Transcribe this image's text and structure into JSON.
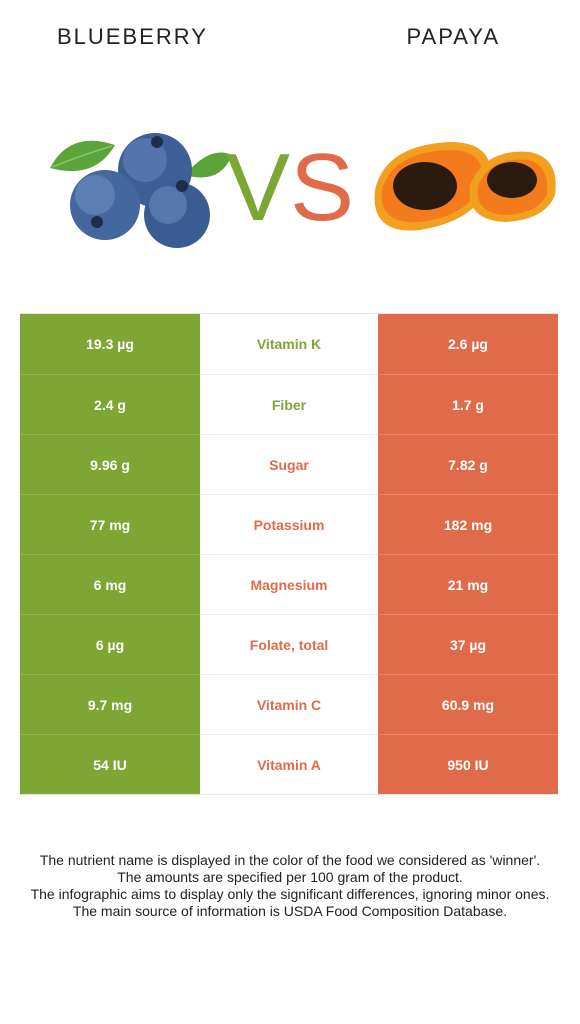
{
  "header": {
    "left_food": "BLUEBERRY",
    "right_food": "PAPAYA",
    "vs_v": "V",
    "vs_s": "S"
  },
  "colors": {
    "left_accent": "#7ea634",
    "right_accent": "#e06b4a"
  },
  "rows": [
    {
      "left": "19.3 µg",
      "nutrient": "Vitamin K",
      "right": "2.6 µg",
      "winner": "left"
    },
    {
      "left": "2.4 g",
      "nutrient": "Fiber",
      "right": "1.7 g",
      "winner": "left"
    },
    {
      "left": "9.96 g",
      "nutrient": "Sugar",
      "right": "7.82 g",
      "winner": "right"
    },
    {
      "left": "77 mg",
      "nutrient": "Potassium",
      "right": "182 mg",
      "winner": "right"
    },
    {
      "left": "6 mg",
      "nutrient": "Magnesium",
      "right": "21 mg",
      "winner": "right"
    },
    {
      "left": "6 µg",
      "nutrient": "Folate, total",
      "right": "37 µg",
      "winner": "right"
    },
    {
      "left": "9.7 mg",
      "nutrient": "Vitamin C",
      "right": "60.9 mg",
      "winner": "right"
    },
    {
      "left": "54 IU",
      "nutrient": "Vitamin A",
      "right": "950 IU",
      "winner": "right"
    }
  ],
  "notes": [
    "The nutrient name is displayed in the color of the food we considered as 'winner'.",
    "The amounts are specified per 100 gram of the product.",
    "The infographic aims to display only the significant differences, ignoring minor ones.",
    "The main source of information is USDA Food Composition Database."
  ]
}
